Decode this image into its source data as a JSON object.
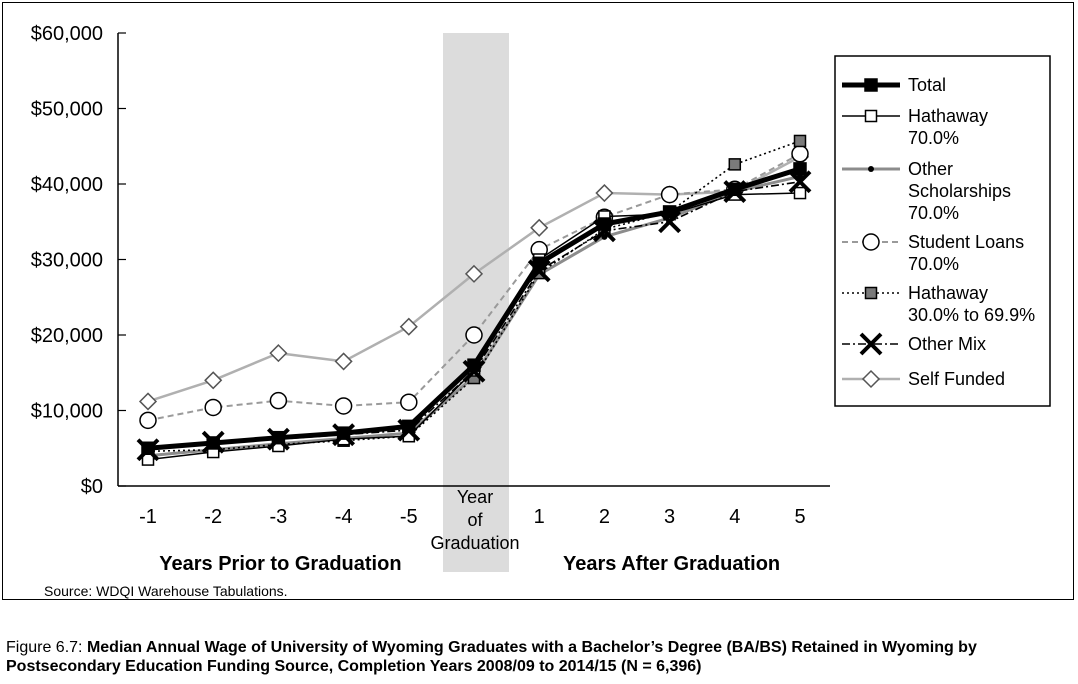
{
  "chart_data": {
    "type": "line",
    "x_groups": [
      {
        "label": "Years Prior to Graduation",
        "categories": [
          "-1",
          "-2",
          "-3",
          "-4",
          "-5"
        ]
      },
      {
        "label": "",
        "categories": [
          "Year of Graduation"
        ]
      },
      {
        "label": "Years After Graduation",
        "categories": [
          "1",
          "2",
          "3",
          "4",
          "5"
        ]
      }
    ],
    "categories": [
      "-1",
      "-2",
      "-3",
      "-4",
      "-5",
      "Year of Graduation",
      "1",
      "2",
      "3",
      "4",
      "5"
    ],
    "highlight_category": "Year of Graduation",
    "y_ticks": [
      "$0",
      "$10,000",
      "$20,000",
      "$30,000",
      "$40,000",
      "$50,000",
      "$60,000"
    ],
    "ylim": [
      0,
      60000
    ],
    "legend_position": "right",
    "series": [
      {
        "name": "Total",
        "style": "thick-black-square",
        "color": "#000000",
        "values": [
          5000,
          5700,
          6400,
          7000,
          7900,
          16000,
          29500,
          34700,
          36300,
          39300,
          42000
        ]
      },
      {
        "name": "Hathaway 70.0%",
        "style": "black-open-square",
        "color": "#000000",
        "values": [
          3500,
          4500,
          5300,
          6200,
          6600,
          15300,
          30000,
          35700,
          36000,
          38600,
          38800
        ]
      },
      {
        "name": "Other Scholarships 70.0%",
        "style": "gray-dot",
        "color": "#888888",
        "values": [
          4000,
          4800,
          5600,
          6300,
          7000,
          14500,
          28000,
          33000,
          35500,
          39000,
          41000
        ]
      },
      {
        "name": "Student Loans 70.0%",
        "style": "gray-dashed-circle",
        "color": "#999999",
        "values": [
          8700,
          10400,
          11300,
          10600,
          11100,
          20000,
          31300,
          35600,
          38600,
          39300,
          44000
        ]
      },
      {
        "name": "Hathaway 30.0% to 69.9%",
        "style": "dotted-gray-square",
        "color": "#555555",
        "values": [
          4600,
          4800,
          5500,
          6000,
          6600,
          14300,
          28200,
          34000,
          36300,
          42600,
          45700
        ]
      },
      {
        "name": "Other Mix",
        "style": "dashdot-x",
        "color": "#000000",
        "values": [
          4800,
          5800,
          6200,
          6800,
          7400,
          15200,
          28500,
          33800,
          35000,
          39000,
          40300
        ]
      },
      {
        "name": "Self Funded",
        "style": "light-gray-diamond",
        "color": "#aaaaaa",
        "values": [
          11200,
          14000,
          17600,
          16500,
          21100,
          28100,
          34200,
          38800,
          38600,
          39000,
          43600
        ]
      }
    ]
  },
  "legend": {
    "items": [
      {
        "lines": [
          "Total"
        ]
      },
      {
        "lines": [
          "Hathaway",
          "70.0%"
        ]
      },
      {
        "lines": [
          "Other",
          "Scholarships",
          "70.0%"
        ]
      },
      {
        "lines": [
          "Student Loans",
          "70.0%"
        ]
      },
      {
        "lines": [
          "Hathaway",
          "30.0% to 69.9%"
        ]
      },
      {
        "lines": [
          "Other Mix"
        ]
      },
      {
        "lines": [
          "Self Funded"
        ]
      }
    ]
  },
  "source": "Source: WDQI Warehouse Tabulations.",
  "caption": {
    "label": "Figure 6.7:",
    "text": "Median Annual Wage of University of Wyoming Graduates with a Bachelor’s Degree (BA/BS) Retained in Wyoming by Postsecondary Education Funding Source, Completion Years 2008/09 to 2014/15 (N = 6,396)"
  }
}
